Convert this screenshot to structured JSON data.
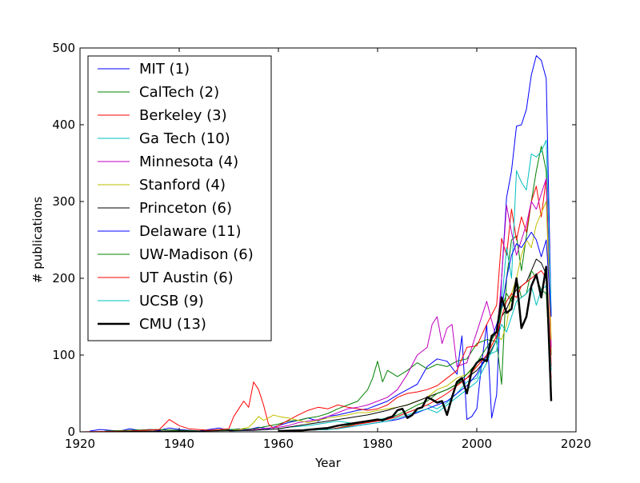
{
  "chart_data": {
    "type": "line",
    "title": "",
    "xlabel": "Year",
    "ylabel": "# publications",
    "xlim": [
      1920,
      2020
    ],
    "ylim": [
      0,
      500
    ],
    "xticks": [
      1920,
      1940,
      1960,
      1980,
      2000,
      2020
    ],
    "yticks": [
      0,
      100,
      200,
      300,
      400,
      500
    ],
    "grid": false,
    "legend_position": "top-left",
    "series": [
      {
        "name": "MIT (1)",
        "color": "#0000ff",
        "x": [
          1922,
          1924,
          1926,
          1928,
          1930,
          1932,
          1934,
          1936,
          1938,
          1940,
          1942,
          1944,
          1946,
          1948,
          1950,
          1952,
          1954,
          1956,
          1958,
          1960,
          1962,
          1964,
          1966,
          1968,
          1970,
          1972,
          1974,
          1976,
          1978,
          1980,
          1982,
          1984,
          1986,
          1988,
          1990,
          1992,
          1994,
          1996,
          1997,
          1998,
          1999,
          2000,
          2001,
          2002,
          2003,
          2004,
          2005,
          2006,
          2007,
          2008,
          2009,
          2010,
          2011,
          2012,
          2013,
          2014,
          2015
        ],
        "y": [
          1,
          3,
          2,
          1,
          4,
          2,
          3,
          2,
          5,
          3,
          2,
          1,
          3,
          5,
          2,
          4,
          3,
          6,
          4,
          8,
          12,
          15,
          18,
          14,
          20,
          22,
          25,
          28,
          30,
          35,
          40,
          48,
          55,
          62,
          85,
          95,
          92,
          75,
          125,
          16,
          20,
          30,
          90,
          140,
          18,
          48,
          200,
          305,
          340,
          398,
          400,
          420,
          465,
          490,
          484,
          460,
          150
        ]
      },
      {
        "name": "CalTech (2)",
        "color": "#008000",
        "x": [
          1925,
          1930,
          1935,
          1940,
          1945,
          1950,
          1955,
          1960,
          1962,
          1964,
          1966,
          1968,
          1970,
          1972,
          1974,
          1976,
          1978,
          1979,
          1980,
          1981,
          1982,
          1984,
          1986,
          1988,
          1990,
          1992,
          1994,
          1996,
          1998,
          2000,
          2002,
          2004,
          2005,
          2006,
          2007,
          2008,
          2009,
          2010,
          2011,
          2012,
          2013,
          2014,
          2015
        ],
        "y": [
          1,
          2,
          3,
          2,
          1,
          3,
          4,
          10,
          14,
          15,
          18,
          20,
          24,
          30,
          35,
          40,
          55,
          70,
          92,
          65,
          80,
          72,
          80,
          90,
          82,
          88,
          85,
          92,
          95,
          115,
          120,
          118,
          62,
          200,
          250,
          255,
          210,
          255,
          300,
          340,
          372,
          340,
          100
        ]
      },
      {
        "name": "Berkeley (3)",
        "color": "#ff0000",
        "x": [
          1920,
          1930,
          1936,
          1938,
          1940,
          1942,
          1946,
          1950,
          1951,
          1952,
          1953,
          1954,
          1955,
          1956,
          1957,
          1958,
          1959,
          1960,
          1962,
          1964,
          1966,
          1968,
          1970,
          1972,
          1974,
          1976,
          1978,
          1980,
          1982,
          1984,
          1986,
          1988,
          1990,
          1992,
          1994,
          1996,
          1998,
          2000,
          2002,
          2004,
          2005,
          2006,
          2007,
          2008,
          2009,
          2010,
          2011,
          2012,
          2013,
          2014,
          2015
        ],
        "y": [
          0,
          1,
          3,
          16,
          8,
          4,
          2,
          4,
          20,
          30,
          40,
          32,
          65,
          55,
          35,
          10,
          5,
          8,
          15,
          22,
          28,
          32,
          30,
          35,
          32,
          30,
          28,
          30,
          35,
          45,
          50,
          52,
          55,
          60,
          70,
          80,
          110,
          112,
          140,
          165,
          252,
          230,
          290,
          250,
          280,
          260,
          300,
          320,
          280,
          330,
          85
        ]
      },
      {
        "name": "Ga Tech (10)",
        "color": "#00bfbf",
        "x": [
          1950,
          1955,
          1960,
          1962,
          1964,
          1966,
          1968,
          1970,
          1972,
          1974,
          1976,
          1978,
          1980,
          1982,
          1984,
          1986,
          1988,
          1990,
          1992,
          1994,
          1996,
          1998,
          2000,
          2002,
          2004,
          2005,
          2006,
          2007,
          2008,
          2009,
          2010,
          2011,
          2012,
          2013,
          2014,
          2015
        ],
        "y": [
          1,
          2,
          4,
          6,
          7,
          8,
          10,
          12,
          14,
          12,
          10,
          14,
          16,
          18,
          20,
          25,
          30,
          35,
          30,
          38,
          50,
          65,
          70,
          100,
          105,
          165,
          240,
          200,
          340,
          325,
          315,
          362,
          358,
          365,
          380,
          150
        ]
      },
      {
        "name": "Minnesota (4)",
        "color": "#bf00bf",
        "x": [
          1950,
          1955,
          1960,
          1962,
          1964,
          1966,
          1968,
          1970,
          1972,
          1974,
          1976,
          1978,
          1980,
          1982,
          1984,
          1986,
          1988,
          1990,
          1991,
          1992,
          1993,
          1994,
          1995,
          1996,
          1998,
          2000,
          2002,
          2004,
          2005,
          2006,
          2007,
          2008,
          2009,
          2010,
          2011,
          2012,
          2013,
          2014,
          2015
        ],
        "y": [
          1,
          3,
          6,
          8,
          12,
          14,
          16,
          20,
          25,
          30,
          32,
          35,
          40,
          45,
          55,
          75,
          100,
          110,
          140,
          150,
          115,
          135,
          140,
          85,
          90,
          130,
          170,
          120,
          200,
          295,
          260,
          230,
          250,
          270,
          300,
          290,
          310,
          330,
          110
        ]
      },
      {
        "name": "Stanford (4)",
        "color": "#bfbf00",
        "x": [
          1950,
          1952,
          1954,
          1955,
          1956,
          1957,
          1958,
          1959,
          1960,
          1962,
          1964,
          1966,
          1968,
          1970,
          1972,
          1974,
          1976,
          1978,
          1980,
          1982,
          1984,
          1986,
          1988,
          1990,
          1992,
          1994,
          1996,
          1998,
          2000,
          2002,
          2004,
          2005,
          2006,
          2007,
          2008,
          2009,
          2010,
          2011,
          2012,
          2013,
          2014,
          2015
        ],
        "y": [
          1,
          3,
          6,
          12,
          20,
          15,
          18,
          22,
          20,
          18,
          15,
          12,
          15,
          18,
          20,
          22,
          25,
          25,
          28,
          30,
          32,
          35,
          40,
          45,
          55,
          60,
          70,
          75,
          85,
          100,
          125,
          120,
          140,
          180,
          200,
          230,
          250,
          240,
          270,
          285,
          300,
          120
        ]
      },
      {
        "name": "Princeton (6)",
        "color": "#000000",
        "x": [
          1925,
          1935,
          1945,
          1955,
          1960,
          1962,
          1964,
          1966,
          1968,
          1970,
          1972,
          1974,
          1976,
          1978,
          1980,
          1982,
          1984,
          1986,
          1988,
          1990,
          1992,
          1994,
          1996,
          1998,
          2000,
          2002,
          2004,
          2005,
          2006,
          2007,
          2008,
          2009,
          2010,
          2011,
          2012,
          2013,
          2014,
          2015
        ],
        "y": [
          0,
          1,
          1,
          2,
          4,
          6,
          8,
          10,
          12,
          14,
          16,
          18,
          20,
          22,
          25,
          28,
          32,
          35,
          40,
          45,
          50,
          55,
          62,
          70,
          80,
          95,
          120,
          150,
          160,
          175,
          185,
          190,
          195,
          210,
          225,
          220,
          205,
          60
        ]
      },
      {
        "name": "Delaware (11)",
        "color": "#0000ff",
        "x": [
          1960,
          1965,
          1970,
          1972,
          1974,
          1976,
          1978,
          1980,
          1982,
          1984,
          1986,
          1988,
          1990,
          1992,
          1994,
          1996,
          1998,
          2000,
          2002,
          2004,
          2005,
          2006,
          2007,
          2008,
          2009,
          2010,
          2011,
          2012,
          2013,
          2014,
          2015
        ],
        "y": [
          1,
          2,
          3,
          5,
          6,
          8,
          10,
          12,
          14,
          16,
          20,
          25,
          30,
          35,
          40,
          50,
          60,
          75,
          100,
          140,
          160,
          200,
          230,
          245,
          240,
          250,
          260,
          250,
          228,
          250,
          150
        ]
      },
      {
        "name": "UW-Madison (6)",
        "color": "#008000",
        "x": [
          1960,
          1965,
          1970,
          1972,
          1974,
          1976,
          1978,
          1980,
          1982,
          1984,
          1986,
          1988,
          1990,
          1992,
          1994,
          1996,
          1998,
          2000,
          2002,
          2004,
          2005,
          2006,
          2007,
          2008,
          2009,
          2010,
          2011,
          2012,
          2013,
          2014,
          2015
        ],
        "y": [
          1,
          2,
          3,
          5,
          8,
          10,
          12,
          15,
          18,
          22,
          28,
          35,
          40,
          50,
          55,
          62,
          75,
          90,
          110,
          130,
          160,
          180,
          170,
          200,
          175,
          180,
          210,
          200,
          185,
          180,
          60
        ]
      },
      {
        "name": "UT Austin (6)",
        "color": "#ff0000",
        "x": [
          1960,
          1965,
          1970,
          1972,
          1974,
          1976,
          1978,
          1980,
          1982,
          1984,
          1986,
          1988,
          1990,
          1992,
          1994,
          1996,
          1998,
          2000,
          2002,
          2004,
          2005,
          2006,
          2007,
          2008,
          2009,
          2010,
          2011,
          2012,
          2013,
          2014,
          2015
        ],
        "y": [
          1,
          2,
          3,
          5,
          7,
          10,
          12,
          14,
          16,
          20,
          25,
          30,
          35,
          42,
          50,
          60,
          70,
          85,
          100,
          125,
          150,
          170,
          180,
          175,
          190,
          195,
          200,
          205,
          210,
          200,
          70
        ]
      },
      {
        "name": "UCSB (9)",
        "color": "#00bfbf",
        "x": [
          1960,
          1965,
          1970,
          1972,
          1974,
          1976,
          1978,
          1980,
          1982,
          1984,
          1986,
          1988,
          1990,
          1992,
          1994,
          1996,
          1998,
          2000,
          2002,
          2004,
          2005,
          2006,
          2007,
          2008,
          2009,
          2010,
          2011,
          2012,
          2013,
          2014,
          2015
        ],
        "y": [
          1,
          2,
          3,
          4,
          6,
          8,
          10,
          12,
          14,
          18,
          22,
          26,
          30,
          25,
          35,
          45,
          55,
          65,
          90,
          120,
          140,
          130,
          150,
          170,
          175,
          180,
          190,
          165,
          185,
          190,
          80
        ]
      },
      {
        "name": "CMU (13)",
        "color": "#000000",
        "bold": true,
        "x": [
          1960,
          1965,
          1968,
          1970,
          1972,
          1974,
          1976,
          1978,
          1980,
          1981,
          1982,
          1983,
          1984,
          1985,
          1986,
          1987,
          1988,
          1989,
          1990,
          1991,
          1992,
          1993,
          1994,
          1995,
          1996,
          1997,
          1998,
          1999,
          2000,
          2001,
          2002,
          2003,
          2004,
          2005,
          2006,
          2007,
          2008,
          2009,
          2010,
          2011,
          2012,
          2013,
          2014,
          2015
        ],
        "y": [
          1,
          2,
          4,
          5,
          8,
          10,
          12,
          14,
          16,
          15,
          18,
          20,
          28,
          30,
          18,
          22,
          30,
          32,
          45,
          42,
          38,
          40,
          22,
          45,
          65,
          70,
          50,
          80,
          90,
          95,
          92,
          125,
          130,
          175,
          155,
          160,
          200,
          135,
          150,
          190,
          205,
          175,
          215,
          40
        ]
      }
    ]
  }
}
